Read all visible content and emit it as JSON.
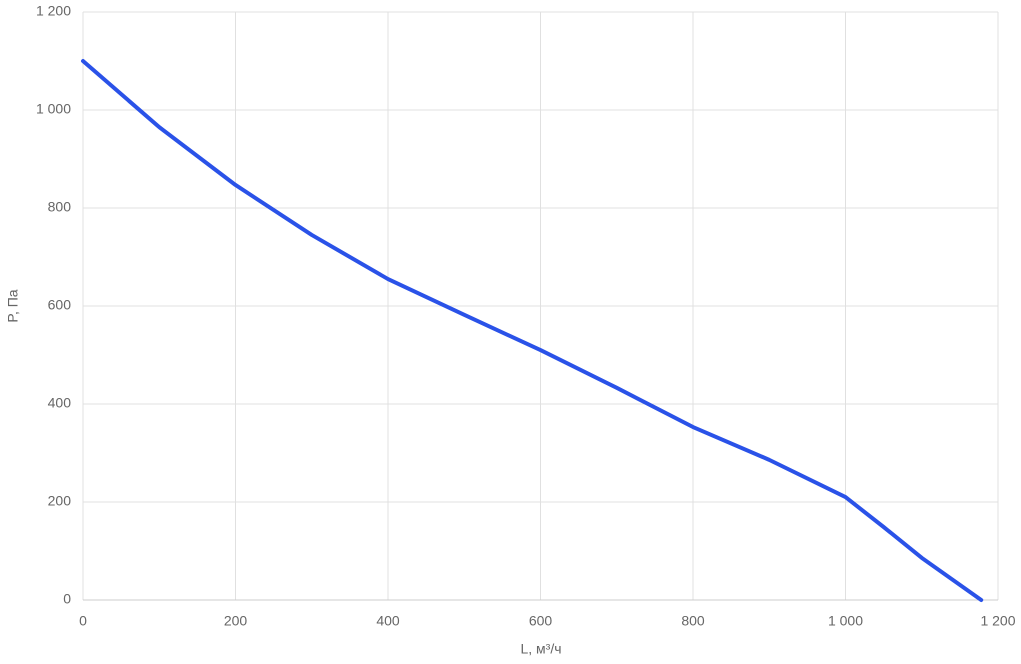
{
  "chart_data": {
    "type": "line",
    "x_label": "L, м³/ч",
    "y_label": "P, Па",
    "x": [
      0,
      100,
      200,
      300,
      400,
      500,
      600,
      700,
      800,
      900,
      1000,
      1050,
      1100,
      1178
    ],
    "values": [
      1100,
      965,
      847,
      745,
      655,
      582,
      510,
      433,
      353,
      286,
      210,
      149,
      86,
      0
    ],
    "color": "#2a52e8",
    "xlim": [
      0,
      1200
    ],
    "xticks": [
      0,
      200,
      400,
      600,
      800,
      {
        "value": 1000,
        "label": "1 000"
      },
      {
        "value": 1200,
        "label": "1 200"
      }
    ],
    "ylim": [
      0,
      1200
    ],
    "yticks": [
      0,
      200,
      400,
      600,
      800,
      {
        "value": 1000,
        "label": "1 000"
      },
      {
        "value": 1200,
        "label": "1 200"
      }
    ],
    "grid": true
  }
}
